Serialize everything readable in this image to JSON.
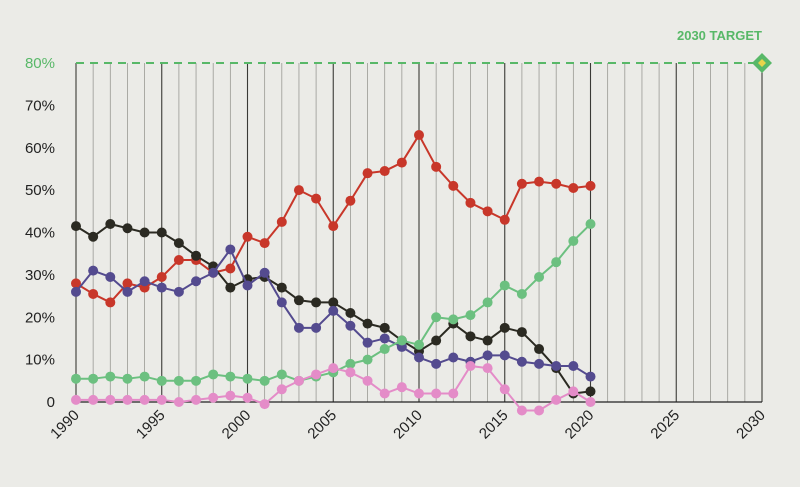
{
  "chart_data": {
    "type": "line",
    "xlim": [
      1990,
      2030
    ],
    "ylim": [
      0,
      80
    ],
    "x_ticks": [
      "1990",
      "1995",
      "2000",
      "2005",
      "2010",
      "2015",
      "2020",
      "2025",
      "2030"
    ],
    "y_ticks": [
      "0",
      "10%",
      "20%",
      "30%",
      "40%",
      "50%",
      "60%",
      "70%",
      "80%"
    ],
    "grid": "vertical lines yearly, darker every 5 years",
    "target": {
      "label": "2030 TARGET",
      "year": 2030,
      "value": 80,
      "color": "#58b868",
      "marker_color": "#e8d44a"
    },
    "x": [
      1990,
      1991,
      1992,
      1993,
      1994,
      1995,
      1996,
      1997,
      1998,
      1999,
      2000,
      2001,
      2002,
      2003,
      2004,
      2005,
      2006,
      2007,
      2008,
      2009,
      2010,
      2011,
      2012,
      2013,
      2014,
      2015,
      2016,
      2017,
      2018,
      2019,
      2020
    ],
    "series": [
      {
        "color": "#c8372a",
        "values": [
          28,
          25.5,
          23.5,
          28,
          27,
          29.5,
          33.5,
          33.5,
          30.5,
          31.5,
          39,
          37.5,
          42.5,
          50,
          48,
          41.5,
          47.5,
          54,
          54.5,
          56.5,
          63,
          55.5,
          51,
          47,
          45,
          43,
          51.5,
          52,
          51.5,
          50.5,
          51
        ]
      },
      {
        "color": "#2b2a22",
        "values": [
          41.5,
          39,
          42,
          41,
          40,
          40,
          37.5,
          34.5,
          32,
          27,
          29,
          29.5,
          27,
          24,
          23.5,
          23.5,
          21,
          18.5,
          17.5,
          14.5,
          12,
          14.5,
          18.5,
          15.5,
          14.5,
          17.5,
          16.5,
          12.5,
          8,
          2,
          2.5
        ]
      },
      {
        "color": "#544b8f",
        "values": [
          26,
          31,
          29.5,
          26,
          28.5,
          27,
          26,
          28.5,
          30.5,
          36,
          27.5,
          30.5,
          23.5,
          17.5,
          17.5,
          21.5,
          18,
          14,
          15,
          13,
          10.5,
          9,
          10.5,
          9.5,
          11,
          11,
          9.5,
          9,
          8.5,
          8.5,
          6
        ]
      },
      {
        "color": "#6cc080",
        "values": [
          5.5,
          5.5,
          6,
          5.5,
          6,
          5,
          5,
          5,
          6.5,
          6,
          5.5,
          5,
          6.5,
          5,
          6,
          7,
          9,
          10,
          12.5,
          14.5,
          13.5,
          20,
          19.5,
          20.5,
          23.5,
          27.5,
          25.5,
          29.5,
          33,
          38,
          42
        ]
      },
      {
        "color": "#e48cc8",
        "values": [
          0.5,
          0.5,
          0.5,
          0.5,
          0.5,
          0.5,
          0,
          0.5,
          1,
          1.5,
          1,
          -0.5,
          3,
          5,
          6.5,
          8,
          7,
          5,
          2,
          3.5,
          2,
          2,
          2,
          8.5,
          8,
          3,
          -2,
          -2,
          0.5,
          2.5,
          0
        ]
      }
    ]
  }
}
